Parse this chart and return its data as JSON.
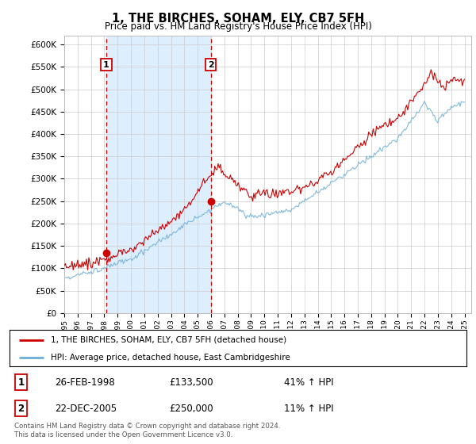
{
  "title": "1, THE BIRCHES, SOHAM, ELY, CB7 5FH",
  "subtitle": "Price paid vs. HM Land Registry's House Price Index (HPI)",
  "ylim": [
    0,
    620000
  ],
  "yticks": [
    0,
    50000,
    100000,
    150000,
    200000,
    250000,
    300000,
    350000,
    400000,
    450000,
    500000,
    550000,
    600000
  ],
  "ytick_labels": [
    "£0",
    "£50K",
    "£100K",
    "£150K",
    "£200K",
    "£250K",
    "£300K",
    "£350K",
    "£400K",
    "£450K",
    "£500K",
    "£550K",
    "£600K"
  ],
  "hpi_color": "#6baed6",
  "price_color": "#cc0000",
  "dot_color": "#cc0000",
  "vline_color": "#cc0000",
  "shade_color": "#ddeeff",
  "transaction1_date_num": 1998.15,
  "transaction1_price": 133500,
  "transaction1_label": "1",
  "transaction2_date_num": 2005.98,
  "transaction2_price": 250000,
  "transaction2_label": "2",
  "legend_line1": "1, THE BIRCHES, SOHAM, ELY, CB7 5FH (detached house)",
  "legend_line2": "HPI: Average price, detached house, East Cambridgeshire",
  "table_row1": [
    "1",
    "26-FEB-1998",
    "£133,500",
    "41% ↑ HPI"
  ],
  "table_row2": [
    "2",
    "22-DEC-2005",
    "£250,000",
    "11% ↑ HPI"
  ],
  "footnote": "Contains HM Land Registry data © Crown copyright and database right 2024.\nThis data is licensed under the Open Government Licence v3.0.",
  "xmin": 1995.0,
  "xmax": 2025.5,
  "background_color": "#ffffff",
  "plot_bg_color": "#ffffff",
  "grid_color": "#cccccc",
  "title_fontsize": 11,
  "subtitle_fontsize": 9
}
